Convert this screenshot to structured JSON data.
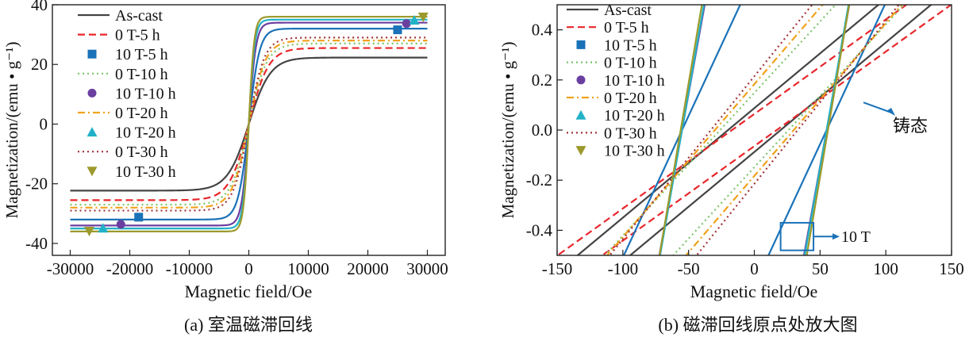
{
  "chart_data": [
    {
      "type": "line",
      "caption": "(a) 室温磁滞回线",
      "xlabel": "Magnetic field/Oe",
      "ylabel": "Magnetization/(emu • g⁻¹)",
      "xlim": [
        -33000,
        33000
      ],
      "ylim": [
        -44,
        40
      ],
      "xticks": [
        -30000,
        -20000,
        -10000,
        0,
        10000,
        20000,
        30000
      ],
      "yticks": [
        -40,
        -20,
        0,
        20,
        40
      ],
      "grid": false,
      "legend": "top-left",
      "series": [
        {
          "name": "As-cast",
          "color": "#444444",
          "dash": "solid",
          "marker": "none",
          "Ms": 22.3,
          "Hk": 3600,
          "x": [
            -30000,
            -10000,
            -3000,
            0,
            3000,
            10000,
            30000
          ],
          "y": [
            -22.3,
            -19.0,
            -10.7,
            0,
            10.7,
            19.0,
            22.3
          ]
        },
        {
          "name": "0 T-5 h",
          "color": "#e8262b",
          "dash": "dashed",
          "marker": "none",
          "Ms": 25.5,
          "Hk": 3300,
          "x": [
            -30000,
            -10000,
            -3000,
            0,
            3000,
            10000,
            30000
          ],
          "y": [
            -25.5,
            -22.1,
            -13.3,
            0,
            13.3,
            22.1,
            25.5
          ]
        },
        {
          "name": "10 T-5 h",
          "color": "#1a72b8",
          "dash": "solid",
          "marker": "square",
          "Ms": 32.0,
          "Hk": 1800,
          "x": [
            -30000,
            -10000,
            -3000,
            0,
            3000,
            10000,
            30000
          ],
          "y": [
            -32.0,
            -30.2,
            -24.4,
            0,
            24.4,
            30.2,
            32.0
          ]
        },
        {
          "name": "0 T-10 h",
          "color": "#7cc46b",
          "dash": "dotted",
          "marker": "none",
          "Ms": 27.0,
          "Hk": 3000,
          "x": [
            -30000,
            -10000,
            -3000,
            0,
            3000,
            10000,
            30000
          ],
          "y": [
            -27.0,
            -23.8,
            -15.4,
            0,
            15.4,
            23.8,
            27.0
          ]
        },
        {
          "name": "10 T-10 h",
          "color": "#6a3fa0",
          "dash": "solid",
          "marker": "circle",
          "Ms": 34.0,
          "Hk": 1200,
          "x": [
            -30000,
            -10000,
            -3000,
            0,
            3000,
            10000,
            30000
          ],
          "y": [
            -34.0,
            -33.0,
            -29.4,
            0,
            29.4,
            33.0,
            34.0
          ]
        },
        {
          "name": "0 T-20 h",
          "color": "#f0a21c",
          "dash": "dashdot",
          "marker": "none",
          "Ms": 28.0,
          "Hk": 2800,
          "x": [
            -30000,
            -10000,
            -3000,
            0,
            3000,
            10000,
            30000
          ],
          "y": [
            -28.0,
            -24.9,
            -16.6,
            0,
            16.6,
            24.9,
            28.0
          ]
        },
        {
          "name": "10 T-20 h",
          "color": "#22b2c8",
          "dash": "solid",
          "marker": "triangle",
          "Ms": 35.0,
          "Hk": 1000,
          "x": [
            -30000,
            -10000,
            -3000,
            0,
            3000,
            10000,
            30000
          ],
          "y": [
            -35.0,
            -34.2,
            -31.3,
            0,
            31.3,
            34.2,
            35.0
          ]
        },
        {
          "name": "0 T-30 h",
          "color": "#a0343a",
          "dash": "dotted",
          "marker": "none",
          "Ms": 29.0,
          "Hk": 2600,
          "x": [
            -30000,
            -10000,
            -3000,
            0,
            3000,
            10000,
            30000
          ],
          "y": [
            -29.0,
            -26.0,
            -17.8,
            0,
            17.8,
            26.0,
            29.0
          ]
        },
        {
          "name": "10 T-30 h",
          "color": "#9c9a2c",
          "dash": "solid",
          "marker": "tridown",
          "Ms": 36.0,
          "Hk": 900,
          "x": [
            -30000,
            -10000,
            -3000,
            0,
            3000,
            10000,
            30000
          ],
          "y": [
            -36.0,
            -35.3,
            -32.7,
            0,
            32.7,
            35.3,
            36.0
          ]
        }
      ],
      "marker_positions": {
        "10 T-5 h": [
          [
            -18500,
            -31.2
          ],
          [
            25000,
            31.6
          ]
        ],
        "10 T-10 h": [
          [
            -21500,
            -33.6
          ],
          [
            26500,
            33.7
          ]
        ],
        "10 T-20 h": [
          [
            -24500,
            -34.9
          ],
          [
            27800,
            34.8
          ]
        ],
        "10 T-30 h": [
          [
            -26800,
            -35.9
          ],
          [
            29300,
            35.9
          ]
        ]
      }
    },
    {
      "type": "line",
      "caption": "(b) 磁滞回线原点处放大图",
      "xlabel": "Magnetic field/Oe",
      "ylabel": "Magnetization/(emu • g⁻¹)",
      "xlim": [
        -150,
        150
      ],
      "ylim": [
        -0.5,
        0.5
      ],
      "xticks": [
        -150,
        -100,
        -50,
        0,
        50,
        100,
        150
      ],
      "yticks": [
        -0.4,
        -0.2,
        0.0,
        0.2,
        0.4
      ],
      "grid": false,
      "legend": "top-left",
      "loops": [
        {
          "name": "As-cast",
          "color": "#444444",
          "dash": "solid",
          "slope": 0.00437,
          "Hc": 20
        },
        {
          "name": "0 T-5 h",
          "color": "#e8262b",
          "dash": "dashed",
          "slope": 0.00377,
          "Hc": 17
        },
        {
          "name": "10 T-5 h",
          "color": "#1a72b8",
          "dash": "solid",
          "slope": 0.0113,
          "Hc": 55
        },
        {
          "name": "0 T-10 h",
          "color": "#7cc46b",
          "dash": "dotted",
          "slope": 0.0057,
          "Hc": 26
        },
        {
          "name": "10 T-10 h",
          "color": "#6a3fa0",
          "dash": "solid",
          "slope": 0.029,
          "Hc": 55
        },
        {
          "name": "0 T-20 h",
          "color": "#f0a21c",
          "dash": "dashdot",
          "slope": 0.0061,
          "Hc": 30
        },
        {
          "name": "10 T-20 h",
          "color": "#22b2c8",
          "dash": "solid",
          "slope": 0.03,
          "Hc": 55
        },
        {
          "name": "0 T-30 h",
          "color": "#a0343a",
          "dash": "dotted",
          "slope": 0.0065,
          "Hc": 33
        },
        {
          "name": "10 T-30 h",
          "color": "#9c9a2c",
          "dash": "solid",
          "slope": 0.031,
          "Hc": 56
        }
      ],
      "annotations": [
        {
          "text": "铸态",
          "x": 122,
          "y": 0.0,
          "arrow_to": [
            83,
            0.11
          ]
        },
        {
          "text": "10 T",
          "x": 64,
          "y": -0.425,
          "box": [
            [
              20,
              -0.48
            ],
            [
              45,
              -0.37
            ]
          ]
        }
      ]
    }
  ]
}
